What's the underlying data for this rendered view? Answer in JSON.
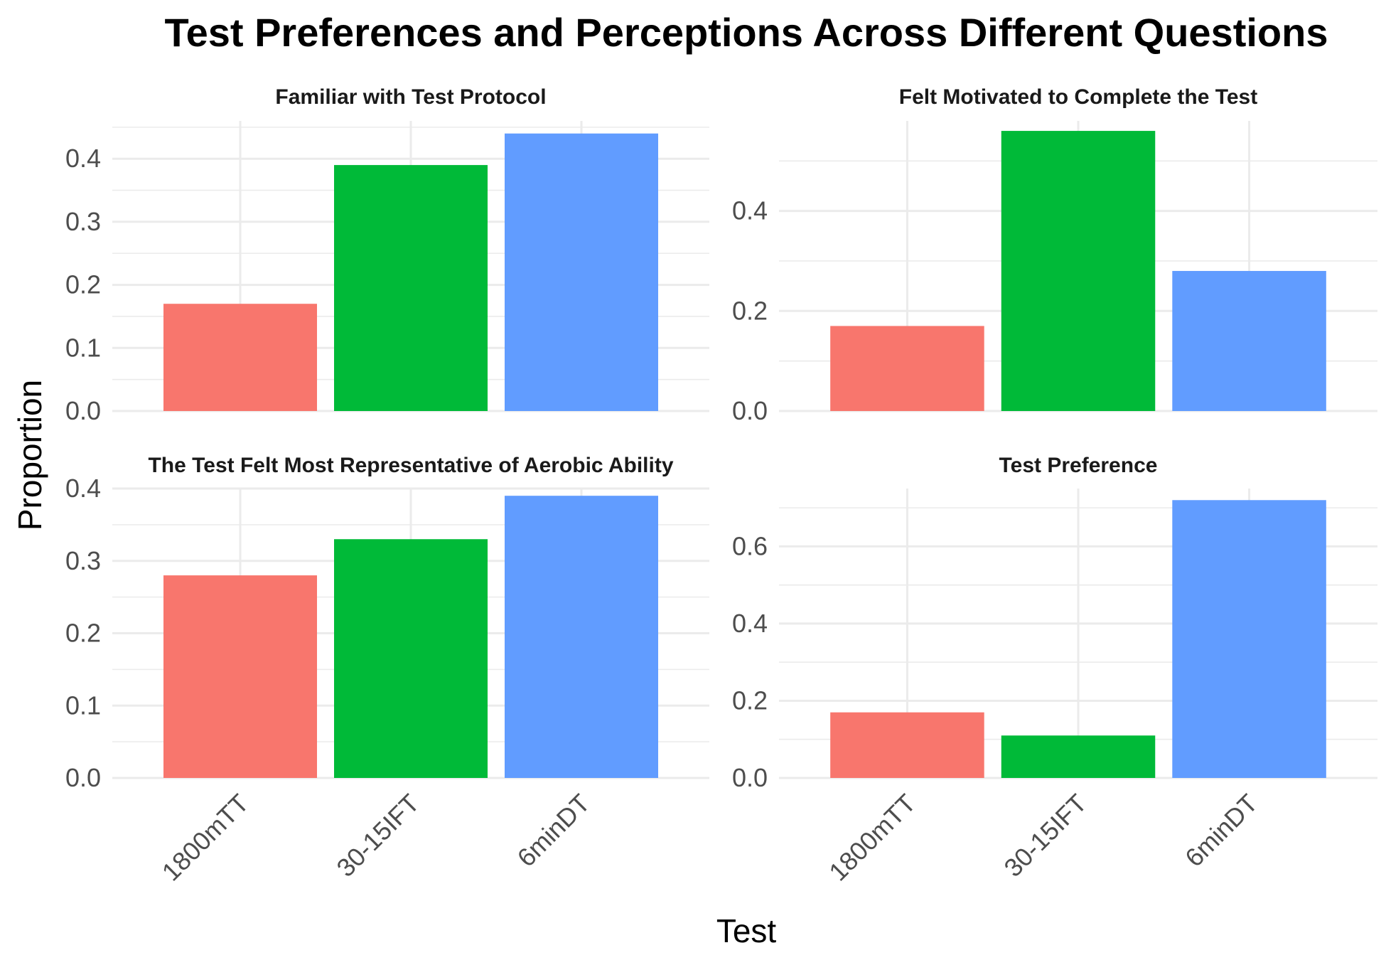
{
  "chart_data": {
    "type": "bar",
    "title": "Test Preferences and Perceptions Across Different Questions",
    "xlabel": "Test",
    "ylabel": "Proportion",
    "categories": [
      "1800mTT",
      "30-15IFT",
      "6minDT"
    ],
    "colors": [
      "#F8766D",
      "#00BA38",
      "#619CFF"
    ],
    "grid": true,
    "panels": [
      {
        "title": "Familiar with Test Protocol",
        "values": [
          0.17,
          0.39,
          0.44
        ],
        "ylim": [
          0,
          0.46
        ],
        "yticks": [
          0.0,
          0.1,
          0.2,
          0.3,
          0.4
        ],
        "ytick_labels": [
          "0.0",
          "0.1",
          "0.2",
          "0.3",
          "0.4"
        ]
      },
      {
        "title": "Felt Motivated to Complete the Test",
        "values": [
          0.17,
          0.56,
          0.28
        ],
        "ylim": [
          0,
          0.58
        ],
        "yticks": [
          0.0,
          0.2,
          0.4
        ],
        "ytick_labels": [
          "0.0",
          "0.2",
          "0.4"
        ]
      },
      {
        "title": "The Test Felt Most Representative of Aerobic Ability",
        "values": [
          0.28,
          0.33,
          0.39
        ],
        "ylim": [
          0,
          0.4
        ],
        "yticks": [
          0.0,
          0.1,
          0.2,
          0.3,
          0.4
        ],
        "ytick_labels": [
          "0.0",
          "0.1",
          "0.2",
          "0.3",
          "0.4"
        ]
      },
      {
        "title": "Test Preference",
        "values": [
          0.17,
          0.11,
          0.72
        ],
        "ylim": [
          0,
          0.75
        ],
        "yticks": [
          0.0,
          0.2,
          0.4,
          0.6
        ],
        "ytick_labels": [
          "0.0",
          "0.2",
          "0.4",
          "0.6"
        ]
      }
    ]
  }
}
